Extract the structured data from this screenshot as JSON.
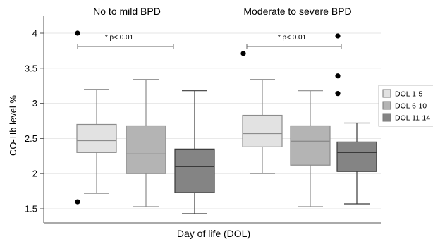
{
  "chart_data": {
    "type": "box",
    "xlabel": "Day of life (DOL)",
    "ylabel": "CO-Hb level %",
    "ylim": [
      1.35,
      4.15
    ],
    "yticks": [
      "1.5",
      "2",
      "2.5",
      "3",
      "3.5",
      "4"
    ],
    "ytick_values": [
      1.5,
      2,
      2.5,
      3,
      3.5,
      4
    ],
    "grid": "horizontal",
    "legend_position": "right",
    "groups": [
      {
        "title": "No to mild BPD",
        "significance": "* p< 0.01",
        "boxes": [
          {
            "series": "DOL 1-5",
            "whisker_low": 1.72,
            "q1": 2.3,
            "median": 2.47,
            "q3": 2.7,
            "whisker_high": 3.2,
            "outliers": [
              4.0,
              1.6
            ]
          },
          {
            "series": "DOL 6-10",
            "whisker_low": 1.53,
            "q1": 2.0,
            "median": 2.28,
            "q3": 2.68,
            "whisker_high": 3.34,
            "outliers": []
          },
          {
            "series": "DOL 11-14",
            "whisker_low": 1.43,
            "q1": 1.73,
            "median": 2.1,
            "q3": 2.35,
            "whisker_high": 3.18,
            "outliers": []
          }
        ]
      },
      {
        "title": "Moderate to severe BPD",
        "significance": "* p< 0.01",
        "boxes": [
          {
            "series": "DOL 1-5",
            "whisker_low": 2.0,
            "q1": 2.38,
            "median": 2.57,
            "q3": 2.83,
            "whisker_high": 3.34,
            "outliers": [
              3.71
            ]
          },
          {
            "series": "DOL 6-10",
            "whisker_low": 1.53,
            "q1": 2.12,
            "median": 2.46,
            "q3": 2.68,
            "whisker_high": 3.18,
            "outliers": []
          },
          {
            "series": "DOL 11-14",
            "whisker_low": 1.57,
            "q1": 2.03,
            "median": 2.3,
            "q3": 2.45,
            "whisker_high": 2.72,
            "outliers": [
              3.96,
              3.39,
              3.14
            ]
          }
        ]
      }
    ],
    "series": [
      {
        "name": "DOL 1-5",
        "color": "#e2e2e2"
      },
      {
        "name": "DOL 6-10",
        "color": "#b4b4b4"
      },
      {
        "name": "DOL 11-14",
        "color": "#848484"
      }
    ],
    "colors": {
      "stroke": "#8c8c8c",
      "dark_stroke": "#3a3a3a",
      "grid": "#e6e6e6",
      "outlier": "#000000"
    }
  }
}
